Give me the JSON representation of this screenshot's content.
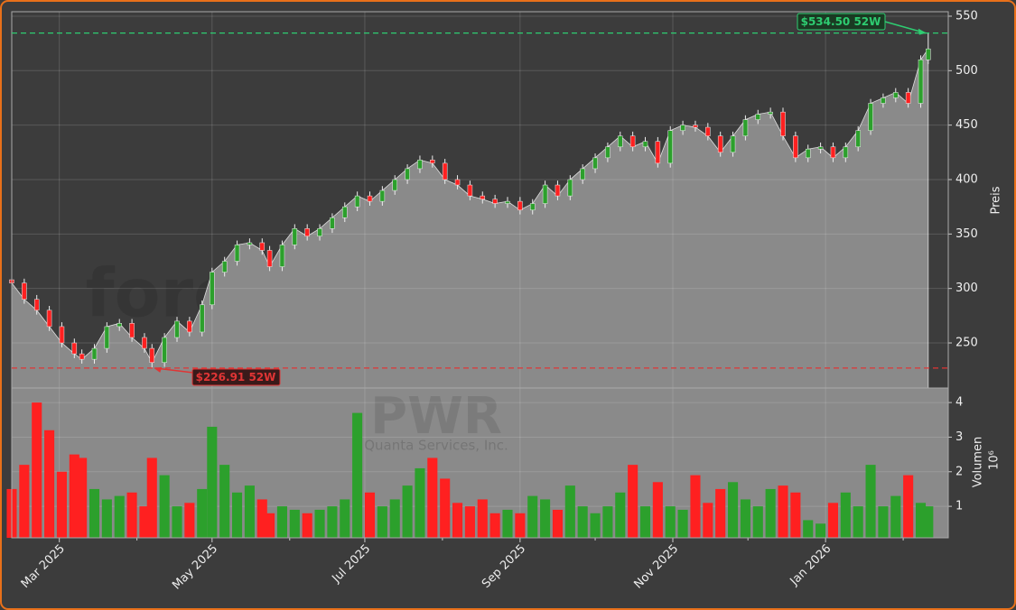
{
  "chart_data": {
    "type": "candlestick",
    "x": [
      0,
      5,
      10,
      15,
      20,
      25,
      28,
      33,
      38,
      43,
      48,
      53,
      56,
      61,
      66,
      71,
      76,
      80,
      85,
      90,
      95,
      100,
      103,
      108,
      113,
      118,
      123,
      128,
      133,
      138,
      143,
      148,
      153,
      158,
      163,
      168,
      173,
      178,
      183,
      188,
      193,
      198,
      203,
      208,
      213,
      218,
      223,
      228,
      233,
      238,
      243,
      248,
      253,
      258,
      263,
      268,
      273,
      278,
      283,
      288,
      293,
      298,
      303,
      308,
      313,
      318,
      323,
      328,
      333,
      338,
      343,
      348,
      353,
      358,
      363,
      366
    ],
    "open": [
      308,
      305,
      290,
      280,
      265,
      250,
      240,
      235,
      245,
      265,
      268,
      255,
      245,
      232,
      255,
      270,
      260,
      285,
      315,
      325,
      340,
      342,
      335,
      320,
      340,
      355,
      348,
      355,
      365,
      375,
      385,
      380,
      390,
      400,
      410,
      418,
      415,
      400,
      395,
      385,
      382,
      378,
      380,
      372,
      378,
      395,
      385,
      400,
      410,
      420,
      430,
      440,
      430,
      435,
      415,
      445,
      450,
      448,
      440,
      425,
      440,
      455,
      460,
      462,
      440,
      420,
      428,
      430,
      420,
      430,
      445,
      470,
      475,
      480,
      470,
      510
    ],
    "high": [
      312,
      309,
      294,
      284,
      269,
      254,
      244,
      249,
      269,
      272,
      272,
      259,
      249,
      259,
      274,
      274,
      289,
      319,
      329,
      344,
      346,
      346,
      339,
      344,
      359,
      359,
      359,
      369,
      379,
      389,
      389,
      394,
      404,
      414,
      422,
      422,
      419,
      404,
      399,
      389,
      386,
      384,
      384,
      382,
      399,
      399,
      404,
      414,
      424,
      434,
      444,
      444,
      439,
      439,
      449,
      454,
      454,
      452,
      444,
      444,
      459,
      464,
      466,
      466,
      444,
      432,
      434,
      434,
      434,
      449,
      474,
      479,
      484,
      484,
      514,
      534.5
    ],
    "low": [
      301,
      286,
      276,
      261,
      246,
      236,
      231,
      231,
      241,
      261,
      251,
      241,
      226.91,
      228,
      251,
      256,
      256,
      281,
      311,
      321,
      336,
      331,
      316,
      316,
      336,
      344,
      344,
      351,
      361,
      371,
      376,
      376,
      386,
      396,
      406,
      411,
      396,
      391,
      381,
      378,
      374,
      374,
      368,
      368,
      374,
      381,
      381,
      396,
      406,
      416,
      426,
      426,
      426,
      411,
      411,
      441,
      444,
      436,
      421,
      421,
      436,
      451,
      456,
      436,
      416,
      416,
      424,
      416,
      416,
      426,
      441,
      466,
      471,
      466,
      466,
      506
    ],
    "close": [
      305,
      290,
      280,
      265,
      250,
      240,
      235,
      245,
      265,
      268,
      255,
      245,
      232,
      255,
      270,
      260,
      285,
      315,
      325,
      340,
      342,
      335,
      320,
      340,
      355,
      348,
      355,
      365,
      375,
      385,
      380,
      390,
      400,
      410,
      418,
      415,
      400,
      395,
      385,
      382,
      378,
      380,
      372,
      378,
      395,
      385,
      400,
      410,
      420,
      430,
      440,
      430,
      435,
      415,
      445,
      450,
      448,
      440,
      425,
      440,
      455,
      460,
      462,
      440,
      420,
      428,
      430,
      420,
      430,
      445,
      470,
      475,
      480,
      470,
      510,
      520
    ],
    "volume": [
      1.5,
      2.2,
      4.0,
      3.2,
      2.0,
      2.5,
      2.4,
      1.5,
      1.2,
      1.3,
      1.4,
      1.0,
      2.4,
      1.9,
      1.0,
      1.1,
      1.5,
      3.3,
      2.2,
      1.4,
      1.6,
      1.2,
      0.8,
      1.0,
      0.9,
      0.8,
      0.9,
      1.0,
      1.2,
      3.7,
      1.4,
      1.0,
      1.2,
      1.6,
      2.1,
      2.4,
      1.8,
      1.1,
      1.0,
      1.2,
      0.8,
      0.9,
      0.8,
      1.3,
      1.2,
      0.9,
      1.6,
      1.0,
      0.8,
      1.0,
      1.4,
      2.2,
      1.0,
      1.7,
      1.0,
      0.9,
      1.9,
      1.1,
      1.5,
      1.7,
      1.2,
      1.0,
      1.5,
      1.6,
      1.4,
      0.6,
      0.5,
      1.1,
      1.4,
      1.0,
      2.2,
      1.0,
      1.3,
      1.9,
      1.1,
      1.0
    ],
    "xlim": [
      0,
      374
    ],
    "xticks": [
      {
        "value": 19,
        "label": "Mar 2025"
      },
      {
        "value": 80,
        "label": "May 2025"
      },
      {
        "value": 141,
        "label": "Jul 2025"
      },
      {
        "value": 203,
        "label": "Sep 2025"
      },
      {
        "value": 264,
        "label": "Nov 2025"
      },
      {
        "value": 325,
        "label": "Jan 2026"
      }
    ],
    "xminorticks": [
      50,
      111,
      172,
      233,
      294,
      356
    ],
    "ylim": [
      208.6,
      554.1
    ],
    "yticks": [
      250,
      300,
      350,
      400,
      450,
      500,
      550
    ],
    "y2lim": [
      0.09,
      4.42
    ],
    "y2ticks": [
      1,
      2,
      3,
      4
    ],
    "ylabel": "Preis",
    "y2label": "Volumen",
    "y2_exponent": "10⁶",
    "up_color": "#2ca02c",
    "down_color": "#ff2020",
    "area_color": "#8a8a8a",
    "grid": true,
    "high_value": 534.5,
    "high_label": "$534.50 52W",
    "high_color": "#2ecc71",
    "low_value": 226.91,
    "low_label": "$226.91 52W",
    "low_color": "#e03535",
    "watermark": "forexsignale.trade",
    "ticker": "PWR",
    "company": "Quanta Services, Inc."
  }
}
